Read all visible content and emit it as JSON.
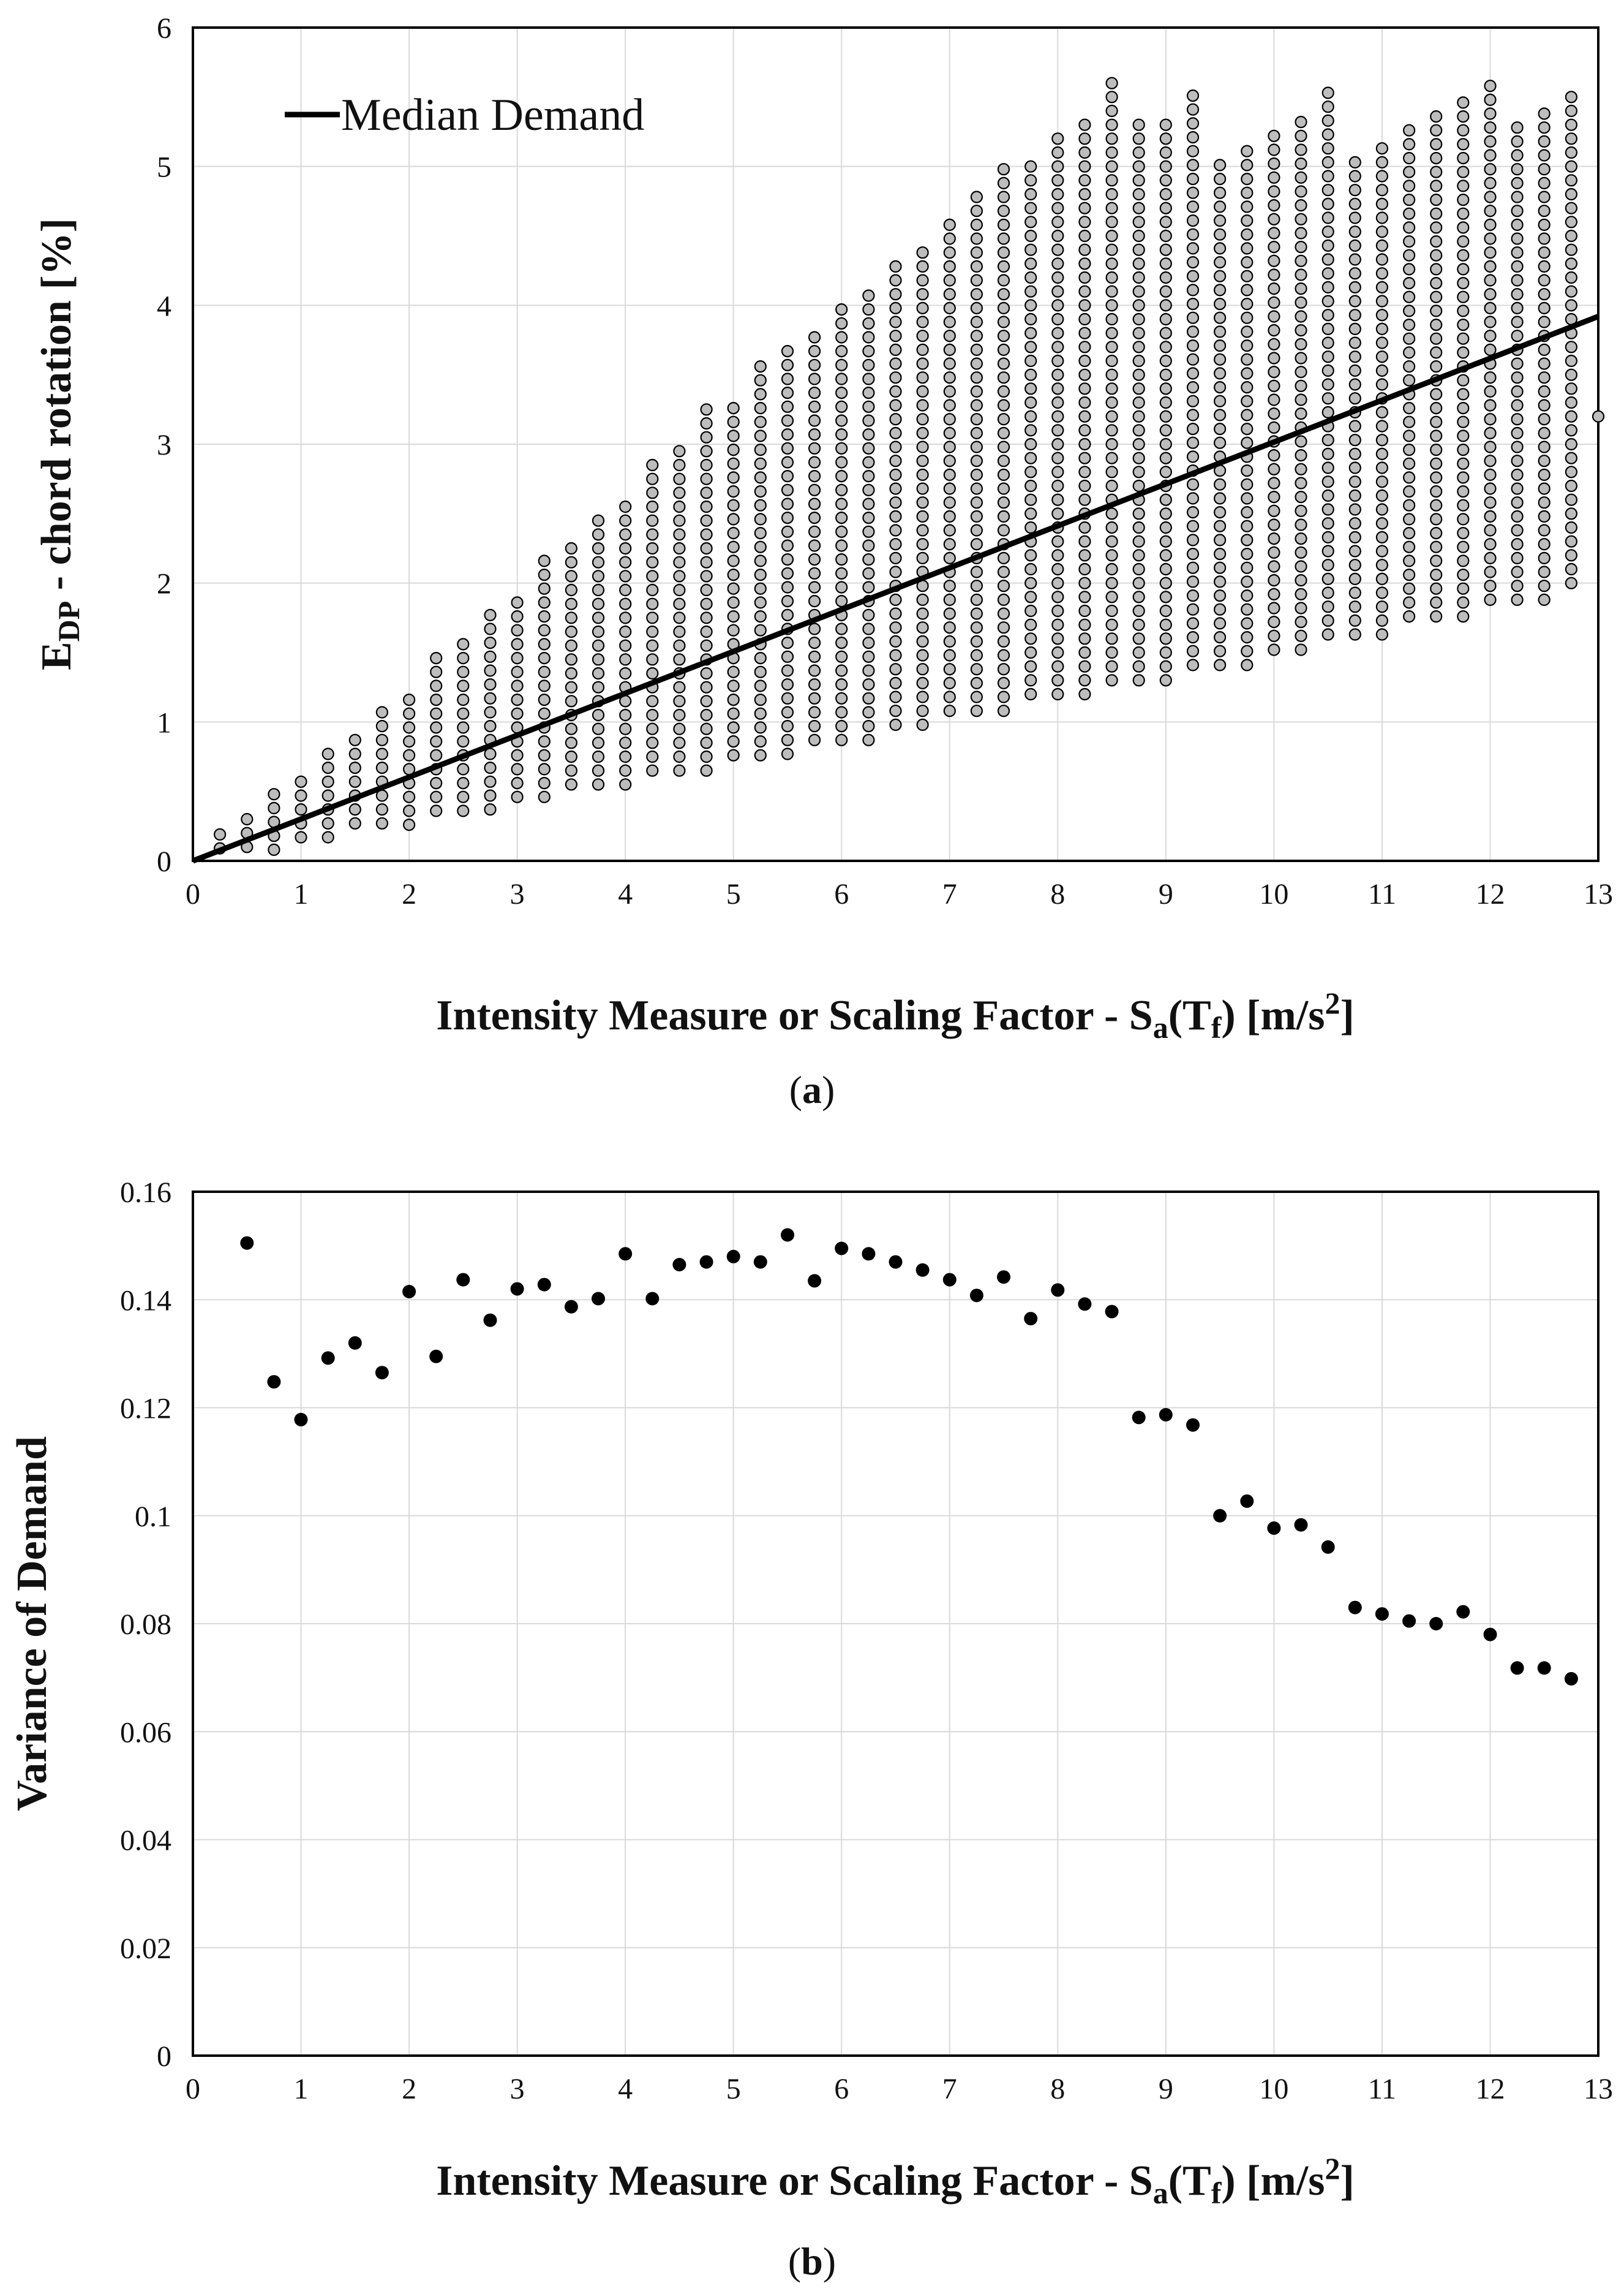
{
  "chart_data": [
    {
      "panel": "a",
      "type": "scatter",
      "caption": "a",
      "xlabel": {
        "main": "Intensity Measure or Scaling Factor - S",
        "sub1": "a",
        "mid": "(T",
        "sub2": "f",
        "end": ") [m/s",
        "sup": "2",
        "close": "]"
      },
      "ylabel": {
        "main": "E",
        "sub": "DP",
        "rest": " - chord rotation [%]"
      },
      "xlim": [
        0,
        13
      ],
      "ylim": [
        0,
        6
      ],
      "xticks": [
        "0",
        "1",
        "2",
        "3",
        "4",
        "5",
        "6",
        "7",
        "8",
        "9",
        "10",
        "11",
        "12",
        "13"
      ],
      "yticks": [
        "0",
        "1",
        "2",
        "3",
        "4",
        "5",
        "6"
      ],
      "grid": true,
      "legend": {
        "position": "top-left",
        "label": "Median Demand"
      },
      "median_line": {
        "x": [
          0,
          13
        ],
        "y": [
          0,
          3.92
        ]
      },
      "scatter_color": "#bdbdbd",
      "x_levels": [
        0.25,
        0.5,
        0.75,
        1,
        1.25,
        1.5,
        1.75,
        2,
        2.25,
        2.5,
        2.75,
        3,
        3.25,
        3.5,
        3.75,
        4,
        4.25,
        4.5,
        4.75,
        5,
        5.25,
        5.5,
        5.75,
        6,
        6.25,
        6.5,
        6.75,
        7,
        7.25,
        7.5,
        7.75,
        8,
        8.25,
        8.5,
        8.75,
        9,
        9.25,
        9.5,
        9.75,
        10,
        10.25,
        10.5,
        10.75,
        11,
        11.25,
        11.5,
        11.75,
        12,
        12.25,
        12.5,
        12.75
      ],
      "y_min": [
        0.09,
        0.1,
        0.08,
        0.17,
        0.17,
        0.27,
        0.27,
        0.26,
        0.36,
        0.36,
        0.37,
        0.46,
        0.46,
        0.55,
        0.55,
        0.55,
        0.65,
        0.65,
        0.65,
        0.76,
        0.76,
        0.77,
        0.87,
        0.87,
        0.87,
        0.98,
        0.98,
        1.08,
        1.08,
        1.08,
        1.2,
        1.2,
        1.2,
        1.3,
        1.3,
        1.3,
        1.41,
        1.41,
        1.41,
        1.52,
        1.52,
        1.63,
        1.63,
        1.63,
        1.76,
        1.76,
        1.76,
        1.88,
        1.88,
        1.88,
        2.0
      ],
      "y_max": [
        0.18,
        0.27,
        0.45,
        0.56,
        0.76,
        0.88,
        1.08,
        1.2,
        1.43,
        1.52,
        1.76,
        1.88,
        2.12,
        2.25,
        2.48,
        2.6,
        2.84,
        2.96,
        3.2,
        3.3,
        3.52,
        3.65,
        3.75,
        3.99,
        4.1,
        4.3,
        4.4,
        4.62,
        4.73,
        4.95,
        5.05,
        5.25,
        5.35,
        5.55,
        5.25,
        5.35,
        5.55,
        5.05,
        5.15,
        5.25,
        5.35,
        5.55,
        5.05,
        5.15,
        5.25,
        5.35,
        5.45,
        5.55,
        5.25,
        5.35,
        5.45
      ],
      "y_step": 0.1,
      "extra_points": [
        {
          "x": 13.0,
          "y": 3.2
        }
      ]
    },
    {
      "panel": "b",
      "type": "scatter",
      "caption": "b",
      "xlabel": {
        "main": "Intensity Measure or Scaling Factor - S",
        "sub1": "a",
        "mid": "(T",
        "sub2": "f",
        "end": ") [m/s",
        "sup": "2",
        "close": "]"
      },
      "ylabel": {
        "main": "Variance of Demand"
      },
      "xlim": [
        0,
        13
      ],
      "ylim": [
        0,
        0.16
      ],
      "xticks": [
        "0",
        "1",
        "2",
        "3",
        "4",
        "5",
        "6",
        "7",
        "8",
        "9",
        "10",
        "11",
        "12",
        "13"
      ],
      "yticks": [
        "0",
        "0.02",
        "0.04",
        "0.06",
        "0.08",
        "0.1",
        "0.12",
        "0.14",
        "0.16"
      ],
      "grid": true,
      "x": [
        0.5,
        0.75,
        1,
        1.25,
        1.5,
        1.75,
        2,
        2.25,
        2.5,
        2.75,
        3,
        3.25,
        3.5,
        3.75,
        4,
        4.25,
        4.5,
        4.75,
        5,
        5.25,
        5.5,
        5.75,
        6,
        6.25,
        6.5,
        6.75,
        7,
        7.25,
        7.5,
        7.75,
        8,
        8.25,
        8.5,
        8.75,
        9,
        9.25,
        9.5,
        9.75,
        10,
        10.25,
        10.5,
        10.75,
        11,
        11.25,
        11.5,
        11.75,
        12,
        12.25,
        12.5,
        12.75
      ],
      "y": [
        0.1505,
        0.1248,
        0.1178,
        0.1292,
        0.132,
        0.1265,
        0.1415,
        0.1295,
        0.1437,
        0.1362,
        0.142,
        0.1428,
        0.1387,
        0.1402,
        0.1485,
        0.1402,
        0.1465,
        0.147,
        0.148,
        0.147,
        0.152,
        0.1435,
        0.1495,
        0.1485,
        0.147,
        0.1455,
        0.1437,
        0.1408,
        0.1442,
        0.1365,
        0.1418,
        0.1392,
        0.1378,
        0.1182,
        0.1187,
        0.1168,
        0.1,
        0.1027,
        0.0977,
        0.0983,
        0.0942,
        0.083,
        0.0818,
        0.0805,
        0.08,
        0.0822,
        0.078,
        0.0718,
        0.0718,
        0.0698
      ]
    }
  ]
}
